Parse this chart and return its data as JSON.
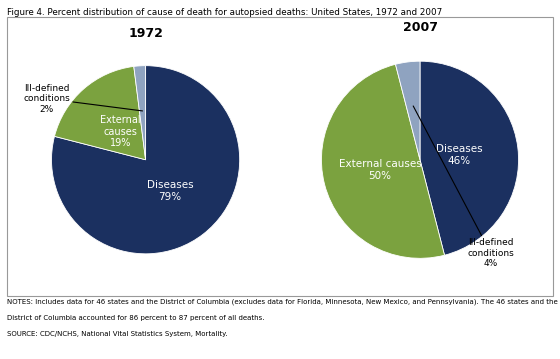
{
  "title": "Figure 4. Percent distribution of cause of death for autopsied deaths: United States, 1972 and 2007",
  "notes_line1": "NOTES: Includes data for 46 states and the District of Columbia (excludes data for Florida, Minnesota, New Mexico, and Pennsylvania). The 46 states and the",
  "notes_line2": "District of Columbia accounted for 86 percent to 87 percent of all deaths.",
  "notes_line3": "SOURCE: CDC/NCHS, National Vital Statistics System, Mortality.",
  "chart1_title": "1972",
  "chart2_title": "2007",
  "chart1_values": [
    79,
    19,
    2
  ],
  "chart2_values": [
    46,
    50,
    4
  ],
  "color_diseases": "#1b3060",
  "color_external": "#7ba23f",
  "color_ill": "#8fa3c0",
  "background": "#ffffff",
  "startangle_1": 90,
  "startangle_2": 90,
  "label_diseases_1": "Diseases\n79%",
  "label_external_1": "External\ncauses\n19%",
  "label_ill_1": "Ill-defined\nconditions\n2%",
  "label_diseases_2": "Diseases\n46%",
  "label_external_2": "External causes\n50%",
  "label_ill_2": "Ill-defined\nconditions\n4%"
}
